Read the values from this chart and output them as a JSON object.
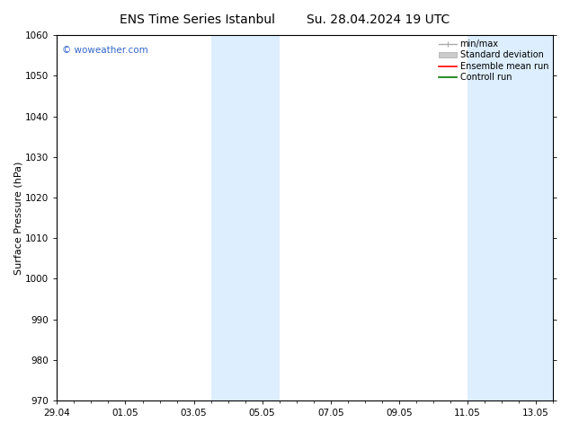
{
  "title_left": "ENS Time Series Istanbul",
  "title_right": "Su. 28.04.2024 19 UTC",
  "ylabel": "Surface Pressure (hPa)",
  "ylim": [
    970,
    1060
  ],
  "yticks": [
    970,
    980,
    990,
    1000,
    1010,
    1020,
    1030,
    1040,
    1050,
    1060
  ],
  "xlim": [
    0,
    14.5
  ],
  "xtick_labels": [
    "29.04",
    "01.05",
    "03.05",
    "05.05",
    "07.05",
    "09.05",
    "11.05",
    "13.05"
  ],
  "xtick_positions": [
    0,
    2,
    4,
    6,
    8,
    10,
    12,
    14
  ],
  "shaded_bands": [
    {
      "x_start": 4.5,
      "x_end": 6.5
    },
    {
      "x_start": 12.0,
      "x_end": 14.5
    }
  ],
  "shaded_color": "#ddeeff",
  "watermark_text": "© woweather.com",
  "watermark_color": "#3366cc",
  "legend_labels": [
    "min/max",
    "Standard deviation",
    "Ensemble mean run",
    "Controll run"
  ],
  "minmax_color": "#aaaaaa",
  "std_facecolor": "#cccccc",
  "std_edgecolor": "#aaaaaa",
  "ens_color": "#ff0000",
  "ctrl_color": "#007700",
  "bg_color": "#ffffff",
  "spine_color": "#000000",
  "title_fontsize": 10,
  "label_fontsize": 8,
  "tick_fontsize": 7.5,
  "watermark_fontsize": 7.5,
  "legend_fontsize": 7
}
